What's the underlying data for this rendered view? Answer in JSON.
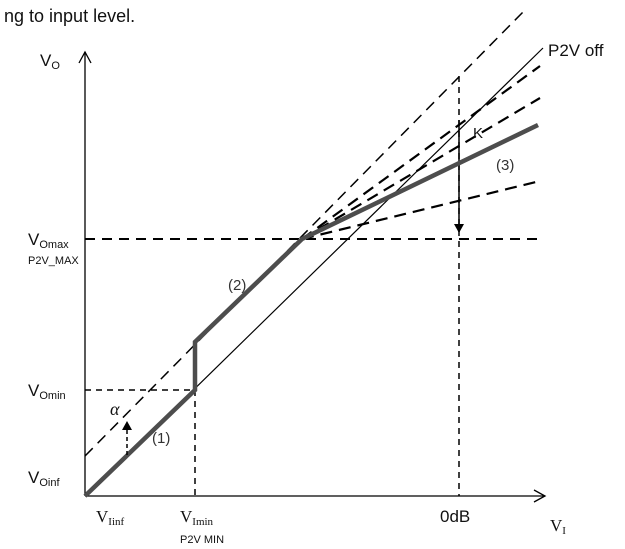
{
  "caption": "ng to input level.",
  "y_axis": {
    "main": "V",
    "sub": "O"
  },
  "x_axis": {
    "main": "V",
    "sub": "I"
  },
  "y_labels": {
    "vomax": {
      "main": "V",
      "sub": "Omax",
      "extra": "P2V_MAX"
    },
    "vomin": {
      "main": "V",
      "sub": "Omin"
    },
    "voinf": {
      "main": "V",
      "sub": "Oinf"
    }
  },
  "x_labels": {
    "viinf": {
      "main": "V",
      "sub": "Iinf"
    },
    "vimin": {
      "main": "V",
      "sub": "Imin",
      "extra": "P2V MIN"
    },
    "zero_db": "0dB"
  },
  "annotations": {
    "p2v_off": "P2V off",
    "k": "K",
    "alpha": "α",
    "region1": "(1)",
    "region2": "(2)",
    "region3": "(3)"
  },
  "colors": {
    "axis": "#000000",
    "curve": "#4d4d4d",
    "dashed": "#000000",
    "text": "#111111"
  }
}
